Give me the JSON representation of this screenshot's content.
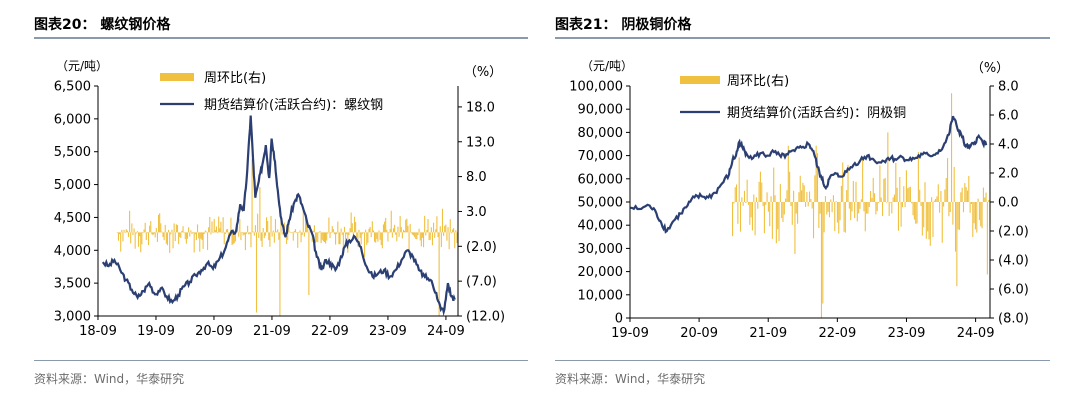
{
  "colors": {
    "line": "#2b3f73",
    "bar": "#f0c040",
    "axis": "#000000",
    "rule": "#8a9aad",
    "source": "#6d6d6d"
  },
  "chart_data": [
    {
      "type": "bar+line",
      "figure_label": "图表20：",
      "title": "螺纹钢价格",
      "source": "资料来源：Wind，华泰研究",
      "y_left_unit": "（元/吨）",
      "y_right_unit": "（%）",
      "x_ticks": [
        "18-09",
        "19-09",
        "20-09",
        "21-09",
        "22-09",
        "23-09",
        "24-09"
      ],
      "x_range": [
        2018.667,
        2024.875
      ],
      "y_left_range": [
        3000,
        6500
      ],
      "y_left_ticks": [
        "3,000",
        "3,500",
        "4,000",
        "4,500",
        "5,000",
        "5,500",
        "6,000",
        "6,500"
      ],
      "y_right_range": [
        -12,
        21
      ],
      "y_right_ticks": [
        "(12.0)",
        "(7.0)",
        "(2.0)",
        "3.0",
        "8.0",
        "13.0",
        "18.0"
      ],
      "legend": [
        "周环比(右)",
        "期货结算价(活跃合约)：螺纹钢"
      ],
      "bar_series": {
        "name": "周环比(右)",
        "start": 2019.0,
        "end": 2024.875,
        "step": 0.0192,
        "typical_amplitude": 3.0,
        "spikes": [
          {
            "x": 2021.33,
            "v": 10.5
          },
          {
            "x": 2021.4,
            "v": -11.5
          },
          {
            "x": 2021.8,
            "v": -12.0
          },
          {
            "x": 2021.46,
            "v": 6.5
          },
          {
            "x": 2022.3,
            "v": -9.0
          },
          {
            "x": 2024.55,
            "v": -12.0
          }
        ]
      },
      "line_series": {
        "name": "期货结算价(活跃合约)：螺纹钢",
        "points": [
          [
            2018.75,
            3820
          ],
          [
            2018.85,
            3760
          ],
          [
            2018.95,
            3850
          ],
          [
            2019.05,
            3700
          ],
          [
            2019.15,
            3550
          ],
          [
            2019.25,
            3400
          ],
          [
            2019.35,
            3280
          ],
          [
            2019.45,
            3380
          ],
          [
            2019.55,
            3500
          ],
          [
            2019.65,
            3330
          ],
          [
            2019.75,
            3420
          ],
          [
            2019.85,
            3300
          ],
          [
            2019.95,
            3210
          ],
          [
            2020.05,
            3320
          ],
          [
            2020.15,
            3450
          ],
          [
            2020.25,
            3520
          ],
          [
            2020.35,
            3620
          ],
          [
            2020.45,
            3700
          ],
          [
            2020.55,
            3800
          ],
          [
            2020.65,
            3720
          ],
          [
            2020.75,
            3850
          ],
          [
            2020.85,
            4000
          ],
          [
            2020.95,
            4250
          ],
          [
            2021.05,
            4300
          ],
          [
            2021.12,
            4700
          ],
          [
            2021.18,
            4600
          ],
          [
            2021.24,
            5200
          ],
          [
            2021.3,
            6050
          ],
          [
            2021.34,
            5400
          ],
          [
            2021.38,
            4800
          ],
          [
            2021.44,
            5050
          ],
          [
            2021.5,
            5300
          ],
          [
            2021.56,
            5600
          ],
          [
            2021.62,
            5100
          ],
          [
            2021.66,
            5700
          ],
          [
            2021.72,
            5350
          ],
          [
            2021.78,
            4800
          ],
          [
            2021.84,
            4400
          ],
          [
            2021.9,
            4200
          ],
          [
            2021.96,
            4450
          ],
          [
            2022.04,
            4700
          ],
          [
            2022.12,
            4850
          ],
          [
            2022.2,
            4650
          ],
          [
            2022.28,
            4400
          ],
          [
            2022.36,
            4250
          ],
          [
            2022.44,
            3900
          ],
          [
            2022.52,
            3700
          ],
          [
            2022.6,
            3850
          ],
          [
            2022.68,
            3800
          ],
          [
            2022.76,
            3700
          ],
          [
            2022.84,
            3850
          ],
          [
            2022.92,
            4050
          ],
          [
            2023.0,
            4150
          ],
          [
            2023.1,
            4200
          ],
          [
            2023.2,
            4050
          ],
          [
            2023.3,
            3750
          ],
          [
            2023.4,
            3600
          ],
          [
            2023.5,
            3650
          ],
          [
            2023.6,
            3700
          ],
          [
            2023.7,
            3600
          ],
          [
            2023.8,
            3700
          ],
          [
            2023.9,
            3850
          ],
          [
            2024.0,
            4000
          ],
          [
            2024.1,
            3900
          ],
          [
            2024.2,
            3700
          ],
          [
            2024.3,
            3600
          ],
          [
            2024.4,
            3550
          ],
          [
            2024.5,
            3350
          ],
          [
            2024.58,
            3100
          ],
          [
            2024.64,
            3100
          ],
          [
            2024.7,
            3500
          ],
          [
            2024.76,
            3300
          ],
          [
            2024.82,
            3250
          ]
        ]
      }
    },
    {
      "type": "bar+line",
      "figure_label": "图表21：",
      "title": "阴极铜价格",
      "source": "资料来源：Wind，华泰研究",
      "y_left_unit": "（元/吨）",
      "y_right_unit": "（%）",
      "x_ticks": [
        "19-09",
        "20-09",
        "21-09",
        "22-09",
        "23-09",
        "24-09"
      ],
      "x_range": [
        2019.667,
        2024.875
      ],
      "y_left_range": [
        0,
        100000
      ],
      "y_left_ticks": [
        "0",
        "10,000",
        "20,000",
        "30,000",
        "40,000",
        "50,000",
        "60,000",
        "70,000",
        "80,000",
        "90,000",
        "100,000"
      ],
      "y_right_range": [
        -8,
        8
      ],
      "y_right_ticks": [
        "(8.0)",
        "(6.0)",
        "(4.0)",
        "(2.0)",
        "0.0",
        "2.0",
        "4.0",
        "6.0",
        "8.0"
      ],
      "legend": [
        "周环比(右)",
        "期货结算价(活跃合约)：阴极铜"
      ],
      "bar_series": {
        "name": "周环比(右)",
        "start": 2021.15,
        "end": 2024.875,
        "step": 0.0192,
        "typical_amplitude": 3.5,
        "spikes": [
          {
            "x": 2022.44,
            "v": -8.0
          },
          {
            "x": 2022.46,
            "v": -7.0
          },
          {
            "x": 2023.4,
            "v": 4.8
          },
          {
            "x": 2024.32,
            "v": 7.5
          },
          {
            "x": 2024.4,
            "v": -5.8
          },
          {
            "x": 2024.84,
            "v": -5.0
          }
        ]
      },
      "line_series": {
        "name": "期货结算价(活跃合约)：阴极铜",
        "points": [
          [
            2019.67,
            47500
          ],
          [
            2019.8,
            47000
          ],
          [
            2019.95,
            48500
          ],
          [
            2020.05,
            45000
          ],
          [
            2020.12,
            41000
          ],
          [
            2020.2,
            37500
          ],
          [
            2020.3,
            42000
          ],
          [
            2020.4,
            45000
          ],
          [
            2020.5,
            48500
          ],
          [
            2020.6,
            52000
          ],
          [
            2020.7,
            52500
          ],
          [
            2020.8,
            52000
          ],
          [
            2020.9,
            54000
          ],
          [
            2021.0,
            58000
          ],
          [
            2021.1,
            62000
          ],
          [
            2021.15,
            68000
          ],
          [
            2021.2,
            70000
          ],
          [
            2021.25,
            76000
          ],
          [
            2021.3,
            73000
          ],
          [
            2021.35,
            71000
          ],
          [
            2021.45,
            69000
          ],
          [
            2021.55,
            71000
          ],
          [
            2021.65,
            70000
          ],
          [
            2021.75,
            71500
          ],
          [
            2021.85,
            69500
          ],
          [
            2021.95,
            70500
          ],
          [
            2022.05,
            72000
          ],
          [
            2022.15,
            73500
          ],
          [
            2022.25,
            75000
          ],
          [
            2022.32,
            72000
          ],
          [
            2022.38,
            65000
          ],
          [
            2022.44,
            60000
          ],
          [
            2022.5,
            56000
          ],
          [
            2022.55,
            60000
          ],
          [
            2022.62,
            62000
          ],
          [
            2022.7,
            61000
          ],
          [
            2022.8,
            63000
          ],
          [
            2022.9,
            66000
          ],
          [
            2023.0,
            68000
          ],
          [
            2023.1,
            70000
          ],
          [
            2023.2,
            68000
          ],
          [
            2023.3,
            67000
          ],
          [
            2023.4,
            69000
          ],
          [
            2023.5,
            68500
          ],
          [
            2023.6,
            69500
          ],
          [
            2023.7,
            68000
          ],
          [
            2023.8,
            69000
          ],
          [
            2023.9,
            70500
          ],
          [
            2024.0,
            70000
          ],
          [
            2024.1,
            71000
          ],
          [
            2024.2,
            74000
          ],
          [
            2024.28,
            79000
          ],
          [
            2024.34,
            87000
          ],
          [
            2024.4,
            82000
          ],
          [
            2024.46,
            79000
          ],
          [
            2024.52,
            74000
          ],
          [
            2024.58,
            73500
          ],
          [
            2024.64,
            75000
          ],
          [
            2024.7,
            78000
          ],
          [
            2024.76,
            76500
          ],
          [
            2024.82,
            74500
          ]
        ]
      }
    }
  ]
}
